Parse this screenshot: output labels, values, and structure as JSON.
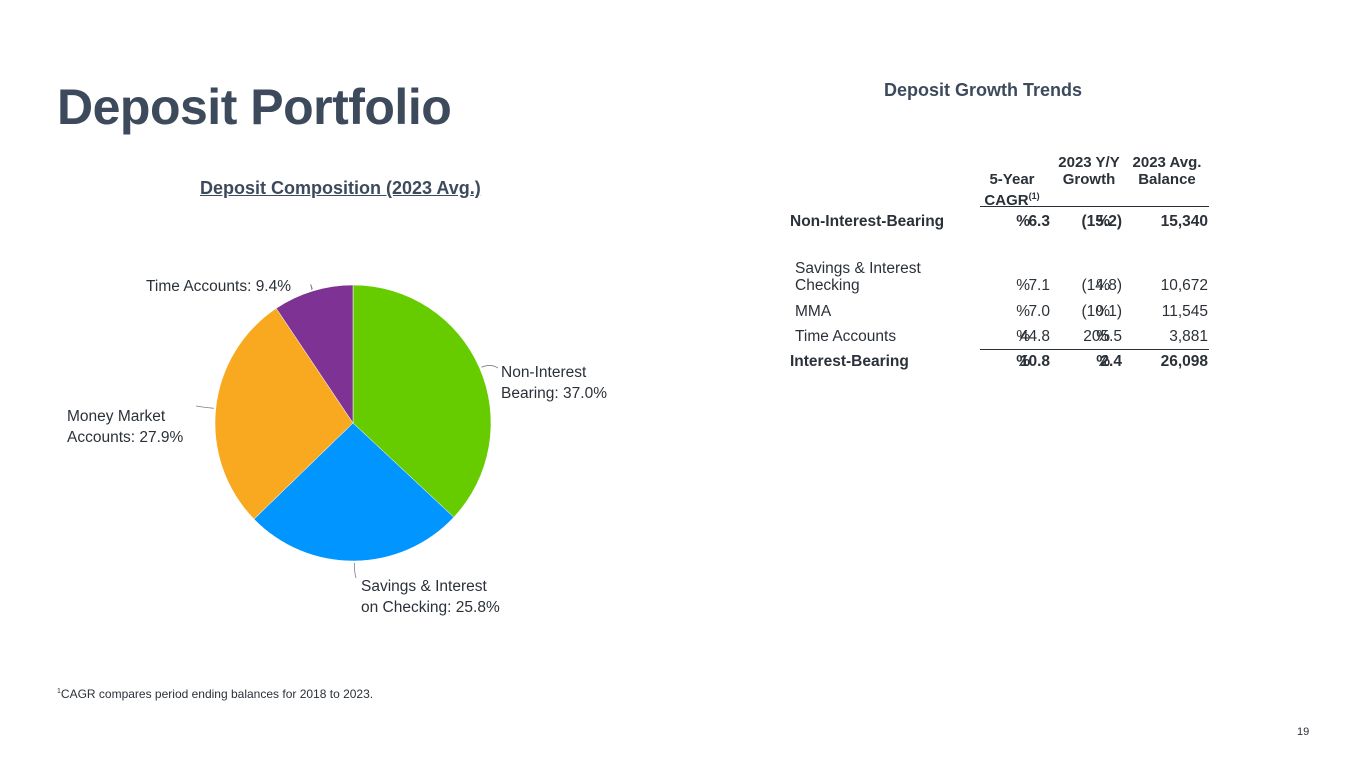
{
  "page": {
    "title": "Deposit Portfolio",
    "page_number": "19"
  },
  "chart_data": {
    "type": "pie",
    "title": "Deposit Composition (2023 Avg.)",
    "slices": [
      {
        "label": "Non-Interest Bearing: 37.0%",
        "name": "Non-Interest Bearing",
        "value": 37.0,
        "color": "#66cc00"
      },
      {
        "label": "Savings & Interest on Checking: 25.8%",
        "name": "Savings & Interest on Checking",
        "value": 25.8,
        "color": "#0095ff"
      },
      {
        "label": "Money Market Accounts: 27.9%",
        "name": "Money Market Accounts",
        "value": 27.9,
        "color": "#f8a920"
      },
      {
        "label": "Time Accounts: 9.4%",
        "name": "Time Accounts",
        "value": 9.4,
        "color": "#7e3394"
      }
    ]
  },
  "table": {
    "title": "Deposit Growth Trends",
    "headers": {
      "cagr": "5-Year CAGR",
      "cagr_footnote": "(1)",
      "growth": "2023 Y/Y Growth",
      "balance": "2023 Avg. Balance"
    },
    "rows": [
      {
        "label": "Non-Interest-Bearing",
        "cagr": "6.3",
        "cagr_suffix": "%",
        "growth": "(15.2)",
        "growth_suffix": "%",
        "balance": "15,340",
        "bold": true
      },
      {
        "label": "Savings & Interest Checking",
        "cagr": "7.1",
        "cagr_suffix": "%",
        "growth": "(14.8)",
        "growth_suffix": "%",
        "balance": "10,672",
        "bold": false
      },
      {
        "label": "MMA",
        "cagr": "7.0",
        "cagr_suffix": "%",
        "growth": "(10.1)",
        "growth_suffix": "%",
        "balance": "11,545",
        "bold": false
      },
      {
        "label": "Time Accounts",
        "cagr": "44.8",
        "cagr_suffix": "%",
        "growth": "205.5",
        "growth_suffix": "%",
        "balance": "3,881",
        "bold": false
      },
      {
        "label": "Interest-Bearing",
        "cagr": "10.8",
        "cagr_suffix": "%",
        "growth": "2.4",
        "growth_suffix": "%",
        "balance": "26,098",
        "bold": true
      }
    ]
  },
  "footnote": {
    "marker": "1",
    "text": "CAGR compares period ending balances for 2018 to 2023."
  }
}
